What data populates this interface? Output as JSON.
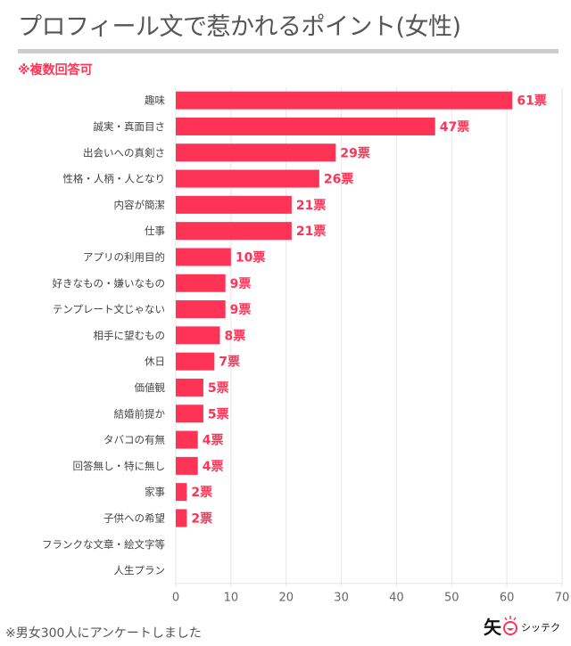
{
  "chart_data": {
    "type": "bar",
    "orientation": "horizontal",
    "title": "プロフィール文で惹かれるポイント(女性)",
    "subtitle": "※複数回答可",
    "categories": [
      "趣味",
      "誠実・真面目さ",
      "出会いへの真剣さ",
      "性格・人柄・人となり",
      "内容が簡潔",
      "仕事",
      "アプリの利用目的",
      "好きなもの・嫌いなもの",
      "テンプレート文じゃない",
      "相手に望むもの",
      "休日",
      "価値観",
      "結婚前提か",
      "タバコの有無",
      "回答無し・特に無し",
      "家事",
      "子供への希望",
      "フランクな文章・絵文字等",
      "人生プラン"
    ],
    "values": [
      61,
      47,
      29,
      26,
      21,
      21,
      10,
      9,
      9,
      8,
      7,
      5,
      5,
      4,
      4,
      2,
      2,
      0,
      0
    ],
    "value_suffix": "票",
    "xlim": [
      0,
      70
    ],
    "xticks": [
      "0",
      "10",
      "20",
      "30",
      "40",
      "50",
      "60",
      "70"
    ],
    "xlabel": "",
    "ylabel": "",
    "grid": "vertical",
    "bar_color": "#ff3355",
    "label_color": "#ff3355"
  },
  "footnote": "※男女300人にアンケートしました",
  "logo": {
    "kanji": "矢",
    "text": "シッテク"
  }
}
